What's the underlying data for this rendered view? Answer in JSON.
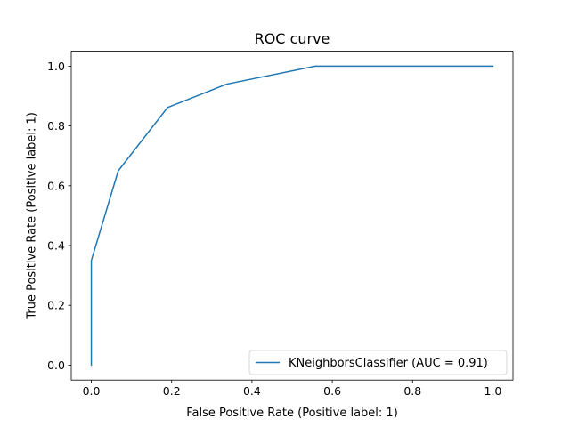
{
  "chart_data": {
    "type": "line",
    "title": "ROC curve",
    "xlabel": "False Positive Rate (Positive label: 1)",
    "ylabel": "True Positive Rate (Positive label: 1)",
    "xlim": [
      -0.05,
      1.05
    ],
    "ylim": [
      -0.05,
      1.05
    ],
    "xticks": [
      "0.0",
      "0.2",
      "0.4",
      "0.6",
      "0.8",
      "1.0"
    ],
    "yticks": [
      "0.0",
      "0.2",
      "0.4",
      "0.6",
      "0.8",
      "1.0"
    ],
    "grid": false,
    "legend_position": "lower-right",
    "series": [
      {
        "name": "KNeighborsClassifier (AUC = 0.91)",
        "color": "#1f77b4",
        "x": [
          0.0,
          0.0,
          0.067,
          0.19,
          0.337,
          0.558,
          1.0
        ],
        "y": [
          0.0,
          0.35,
          0.65,
          0.862,
          0.94,
          1.0,
          1.0
        ]
      }
    ]
  }
}
